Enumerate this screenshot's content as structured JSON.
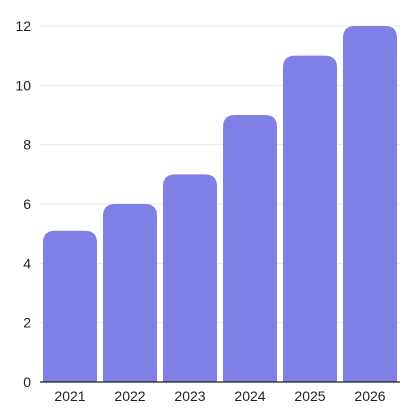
{
  "chart_data": {
    "type": "bar",
    "title": "",
    "xlabel": "",
    "ylabel": "",
    "categories": [
      "2021",
      "2022",
      "2023",
      "2024",
      "2025",
      "2026"
    ],
    "values": [
      5.1,
      6.0,
      7.0,
      9.0,
      11.0,
      12.0
    ],
    "ylim": [
      0,
      12
    ],
    "yticks": [
      "0",
      "2",
      "4",
      "6",
      "8",
      "10",
      "12"
    ],
    "grid": true,
    "legend": "none",
    "bar_color": "#7f7fe6"
  }
}
